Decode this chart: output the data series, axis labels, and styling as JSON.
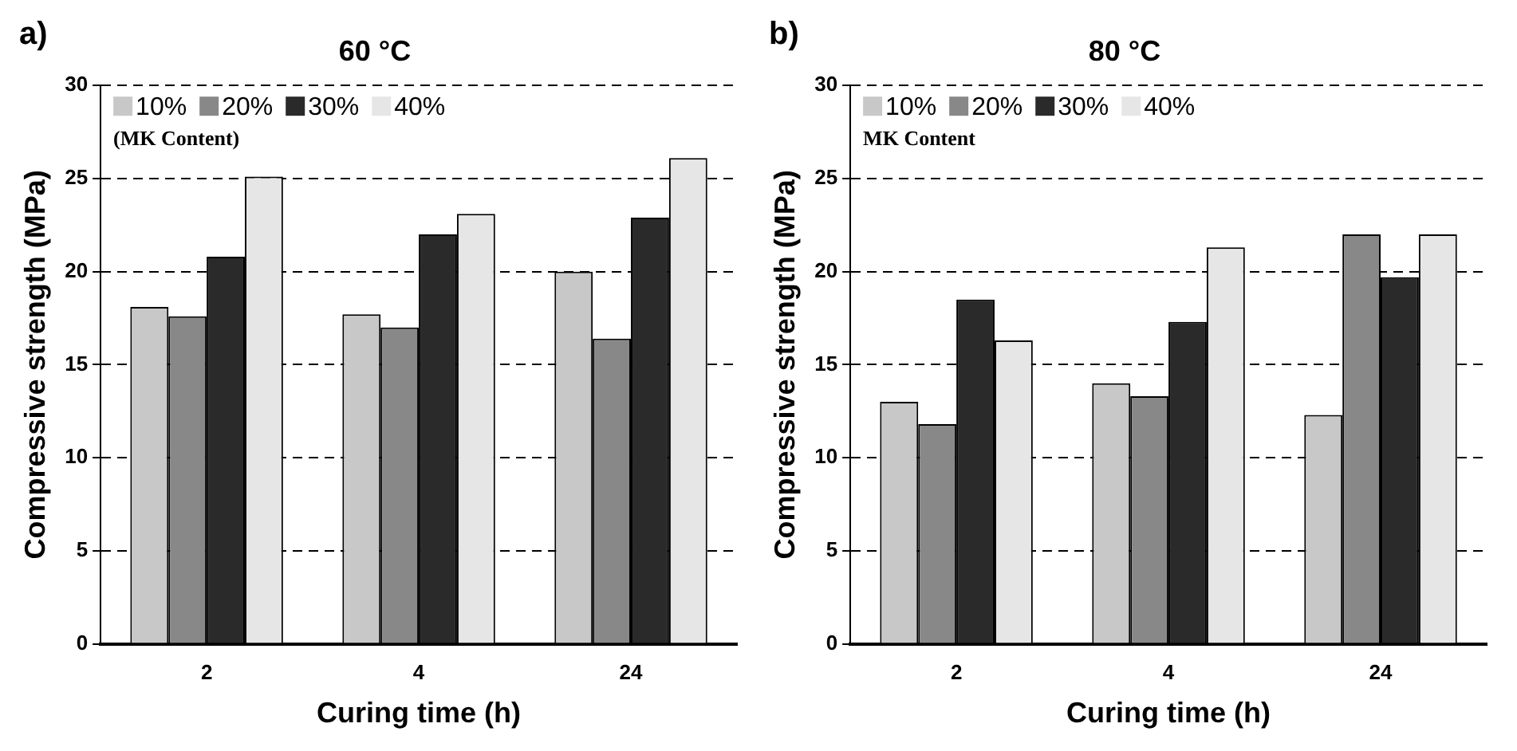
{
  "chart_data": [
    {
      "type": "bar",
      "title": "60 °C",
      "xlabel": "Curing time (h)",
      "ylabel": "Compressive strength (MPa)",
      "legend_title": "(MK Content)",
      "annotations": [
        "a)"
      ],
      "categories": [
        "2",
        "4",
        "24"
      ],
      "series": [
        {
          "name": "10%",
          "color": "#c8c8c8",
          "values": [
            18.1,
            17.7,
            20.0
          ]
        },
        {
          "name": "20%",
          "color": "#888888",
          "values": [
            17.6,
            17.0,
            16.4
          ]
        },
        {
          "name": "30%",
          "color": "#2a2a2a",
          "values": [
            20.8,
            22.0,
            22.9
          ]
        },
        {
          "name": "40%",
          "color": "#e6e6e6",
          "values": [
            25.1,
            23.1,
            26.1
          ]
        }
      ],
      "ylim": [
        0,
        30
      ],
      "yticks": [
        0,
        5,
        10,
        15,
        20,
        25,
        30
      ],
      "grid": "y",
      "legend": "top left"
    },
    {
      "type": "bar",
      "title": "80 °C",
      "xlabel": "Curing time (h)",
      "ylabel": "Compressive strength (MPa)",
      "legend_title": "MK Content",
      "annotations": [
        "b)"
      ],
      "categories": [
        "2",
        "4",
        "24"
      ],
      "series": [
        {
          "name": "10%",
          "color": "#c8c8c8",
          "values": [
            13.0,
            14.0,
            12.3
          ]
        },
        {
          "name": "20%",
          "color": "#888888",
          "values": [
            11.8,
            13.3,
            22.0
          ]
        },
        {
          "name": "30%",
          "color": "#2a2a2a",
          "values": [
            18.5,
            17.3,
            19.7
          ]
        },
        {
          "name": "40%",
          "color": "#e6e6e6",
          "values": [
            16.3,
            21.3,
            22.0
          ]
        }
      ],
      "ylim": [
        0,
        30
      ],
      "yticks": [
        0,
        5,
        10,
        15,
        20,
        25,
        30
      ],
      "grid": "y",
      "legend": "top left"
    }
  ]
}
